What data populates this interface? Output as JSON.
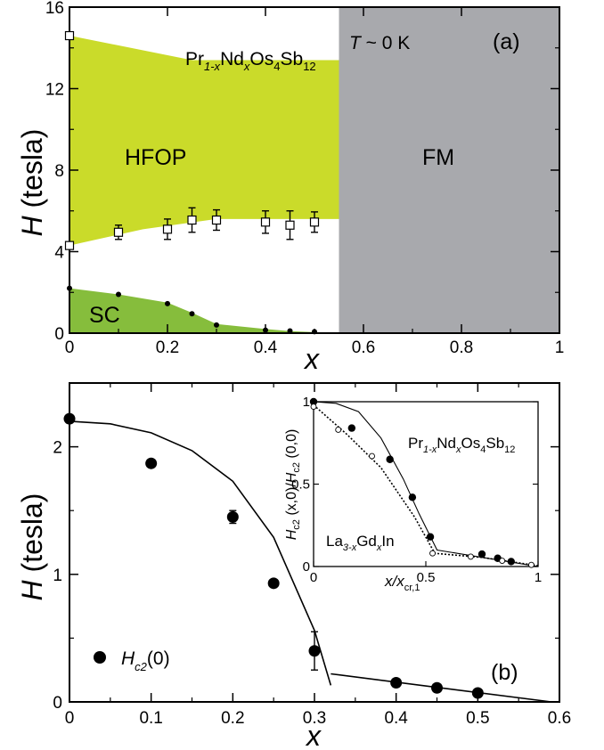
{
  "chart_data": [
    {
      "panel": "(a)",
      "type": "scatter",
      "title_formula": {
        "pre": "Pr",
        "sub1": "1-x",
        "mid": "Nd",
        "sub2": "x",
        "mid2": "Os",
        "sub3": "4",
        "mid3": "Sb",
        "sub4": "12"
      },
      "condition": {
        "var": "T",
        "rest": " ~ 0 K"
      },
      "xlabel": "x",
      "ylabel_var": "H",
      "ylabel_unit": " (tesla)",
      "xlim": [
        0,
        1
      ],
      "ylim": [
        0,
        16
      ],
      "xticks": [
        "0",
        "0.2",
        "0.4",
        "0.6",
        "0.8",
        "1"
      ],
      "xtick_values": [
        0,
        0.2,
        0.4,
        0.6,
        0.8,
        1
      ],
      "yticks": [
        "0",
        "4",
        "8",
        "12",
        "16"
      ],
      "ytick_values": [
        0,
        4,
        8,
        12,
        16
      ],
      "regions": [
        {
          "name": "HFOP",
          "color": "#cadb2a",
          "polygon": [
            [
              0,
              14.6
            ],
            [
              0.25,
              13.4
            ],
            [
              0.55,
              13.4
            ],
            [
              0.55,
              5.6
            ],
            [
              0.3,
              5.6
            ],
            [
              0.15,
              5.1
            ],
            [
              0,
              4.3
            ]
          ]
        },
        {
          "name": "SC",
          "color": "#86bd3c",
          "polygon": [
            [
              0,
              2.2
            ],
            [
              0.1,
              1.9
            ],
            [
              0.2,
              1.5
            ],
            [
              0.25,
              1.0
            ],
            [
              0.3,
              0.45
            ],
            [
              0.4,
              0.2
            ],
            [
              0.45,
              0.1
            ],
            [
              0.5,
              0.05
            ],
            [
              0.55,
              0
            ],
            [
              0,
              0
            ]
          ]
        },
        {
          "name": "FM",
          "color": "#a8a9ad",
          "polygon": [
            [
              0.55,
              0
            ],
            [
              1,
              0
            ],
            [
              1,
              16
            ],
            [
              0.55,
              16
            ]
          ]
        }
      ],
      "series": [
        {
          "marker": "open-square",
          "points": [
            {
              "x": 0,
              "y": 14.6,
              "err": 0
            },
            {
              "x": 0,
              "y": 4.3,
              "err": 0
            },
            {
              "x": 0.1,
              "y": 4.95,
              "err": 0.35
            },
            {
              "x": 0.2,
              "y": 5.1,
              "err": 0.5
            },
            {
              "x": 0.25,
              "y": 5.55,
              "err": 0.6
            },
            {
              "x": 0.3,
              "y": 5.55,
              "err": 0.5
            },
            {
              "x": 0.4,
              "y": 5.45,
              "err": 0.55
            },
            {
              "x": 0.45,
              "y": 5.3,
              "err": 0.7
            },
            {
              "x": 0.5,
              "y": 5.45,
              "err": 0.5
            }
          ]
        },
        {
          "marker": "filled-circle",
          "points": [
            {
              "x": 0,
              "y": 2.2
            },
            {
              "x": 0.1,
              "y": 1.9
            },
            {
              "x": 0.2,
              "y": 1.45
            },
            {
              "x": 0.25,
              "y": 0.95
            },
            {
              "x": 0.3,
              "y": 0.4
            },
            {
              "x": 0.4,
              "y": 0.15
            },
            {
              "x": 0.45,
              "y": 0.11
            },
            {
              "x": 0.5,
              "y": 0.07
            }
          ]
        }
      ]
    },
    {
      "panel": "(b)",
      "type": "scatter",
      "xlabel": "x",
      "ylabel_var": "H",
      "ylabel_unit": " (tesla)",
      "xlim": [
        0,
        0.6
      ],
      "ylim": [
        0,
        2.5
      ],
      "xticks": [
        "0",
        "0.1",
        "0.2",
        "0.3",
        "0.4",
        "0.5",
        "0.6"
      ],
      "xtick_values": [
        0,
        0.1,
        0.2,
        0.3,
        0.4,
        0.5,
        0.6
      ],
      "yticks": [
        "0",
        "1",
        "2"
      ],
      "ytick_values": [
        0,
        1,
        2
      ],
      "legend": {
        "var": "H",
        "sub": "c2",
        "rest": "(0)"
      },
      "series": [
        {
          "name": "Hc2(0)",
          "marker": "filled-circle",
          "points": [
            {
              "x": 0,
              "y": 2.22,
              "err": 0
            },
            {
              "x": 0.1,
              "y": 1.87,
              "err": 0
            },
            {
              "x": 0.2,
              "y": 1.45,
              "err": 0.05
            },
            {
              "x": 0.25,
              "y": 0.93,
              "err": 0
            },
            {
              "x": 0.3,
              "y": 0.4,
              "err": 0.15
            },
            {
              "x": 0.4,
              "y": 0.15,
              "err": 0
            },
            {
              "x": 0.45,
              "y": 0.11,
              "err": 0
            },
            {
              "x": 0.5,
              "y": 0.07,
              "err": 0
            }
          ]
        }
      ],
      "fit_curves": [
        {
          "points": [
            [
              0,
              2.2
            ],
            [
              0.05,
              2.18
            ],
            [
              0.1,
              2.11
            ],
            [
              0.15,
              1.97
            ],
            [
              0.2,
              1.73
            ],
            [
              0.25,
              1.29
            ],
            [
              0.3,
              0.56
            ],
            [
              0.32,
              0.13
            ]
          ]
        },
        {
          "points": [
            [
              0.32,
              0.22
            ],
            [
              0.59,
              0
            ]
          ]
        }
      ],
      "inset": {
        "xlim": [
          0,
          1
        ],
        "ylim": [
          0,
          1
        ],
        "xticks": [
          "0",
          "0.5",
          "1"
        ],
        "xtick_values": [
          0,
          0.5,
          1
        ],
        "yticks": [
          "0",
          "0.5",
          "1"
        ],
        "ytick_values": [
          0,
          0.5,
          1
        ],
        "xlabel": {
          "var": "x/x",
          "sub": "cr,1"
        },
        "ylabel": {
          "p1": "H",
          "s1": "c2",
          "p2": " (x,0)/",
          "p3": "H",
          "s2": "c2",
          "p4": " (0,0)"
        },
        "label_prnd": {
          "pre": "Pr",
          "sub1": "1-x",
          "mid": "Nd",
          "sub2": "x",
          "mid2": "Os",
          "sub3": "4",
          "mid3": "Sb",
          "sub4": "12"
        },
        "label_lagd": {
          "pre": "La",
          "sub1": "3-x",
          "mid": "Gd",
          "sub2": "x",
          "mid2": "In"
        },
        "series": [
          {
            "name": "PrNdOsSb",
            "marker": "filled-circle",
            "points": [
              [
                0,
                1.0
              ],
              [
                0.17,
                0.84
              ],
              [
                0.34,
                0.65
              ],
              [
                0.44,
                0.42
              ],
              [
                0.52,
                0.18
              ],
              [
                0.75,
                0.075
              ],
              [
                0.82,
                0.05
              ],
              [
                0.88,
                0.03
              ]
            ]
          },
          {
            "name": "LaGdIn",
            "marker": "open-circle",
            "points": [
              [
                0,
                0.97
              ],
              [
                0.11,
                0.83
              ],
              [
                0.26,
                0.67
              ],
              [
                0.53,
                0.08
              ],
              [
                0.7,
                0.06
              ],
              [
                0.84,
                0.035
              ],
              [
                0.97,
                0.01
              ]
            ]
          }
        ],
        "curves": [
          {
            "style": "solid",
            "points": [
              [
                0,
                1.0
              ],
              [
                0.1,
                0.99
              ],
              [
                0.2,
                0.94
              ],
              [
                0.3,
                0.78
              ],
              [
                0.4,
                0.53
              ],
              [
                0.47,
                0.32
              ],
              [
                0.55,
                0.1
              ],
              [
                1.0,
                0.0
              ]
            ]
          },
          {
            "style": "dotted",
            "points": [
              [
                0,
                0.98
              ],
              [
                0.15,
                0.8
              ],
              [
                0.3,
                0.6
              ],
              [
                0.45,
                0.3
              ],
              [
                0.54,
                0.08
              ],
              [
                0.75,
                0.055
              ],
              [
                1.0,
                0.005
              ]
            ]
          }
        ]
      }
    }
  ],
  "colors": {
    "hfop": "#cadb2a",
    "sc": "#86bd3c",
    "fm": "#a8a9ad",
    "ink": "#000000"
  }
}
